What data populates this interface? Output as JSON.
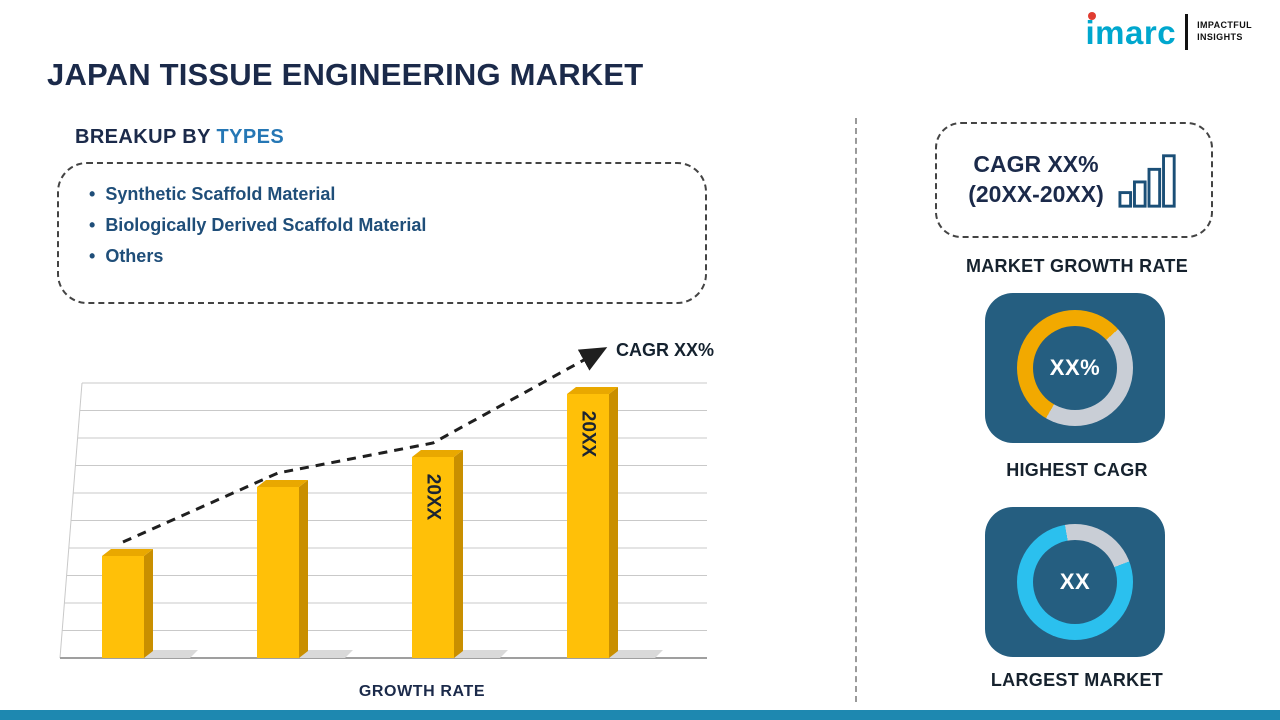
{
  "theme": {
    "navy": "#1b2a4a",
    "heading-accent": "#2577b5",
    "list-blue": "#1f4e79",
    "bar-gold": "#FFC008",
    "bar-gold-side": "#C98F00",
    "bar-gold-top": "#E9A800",
    "tile-blue": "#255e80",
    "donut-yellow": "#F2A900",
    "donut-cyan": "#2BC0EE",
    "donut-gray": "#C9CED6",
    "bottom-bar": "#1E88B0",
    "logo-teal": "#00A7CE",
    "logo-red": "#E03C31"
  },
  "header": {
    "title": "JAPAN TISSUE ENGINEERING MARKET",
    "logo": {
      "brand": "imarc",
      "tagline_top": "IMPACTFUL",
      "tagline_bottom": "INSIGHTS"
    }
  },
  "breakup": {
    "heading_prefix": "BREAKUP BY ",
    "heading_accent": "TYPES",
    "items": [
      "Synthetic Scaffold Material",
      "Biologically Derived Scaffold Material",
      "Others"
    ]
  },
  "chart_data": {
    "type": "bar",
    "categories": [
      "",
      "",
      "20XX",
      "20XX"
    ],
    "values": [
      34,
      57,
      67,
      88
    ],
    "title": "",
    "xlabel": "GROWTH RATE",
    "ylabel": "",
    "ylim": [
      0,
      100
    ],
    "grid": true,
    "legend": false,
    "trend_label": "CAGR XX%",
    "trend_style": "dashed-arrow",
    "bar_style": "3d-gold"
  },
  "sidebar": {
    "growth_card": {
      "line1": "CAGR XX%",
      "line2": "(20XX-20XX)",
      "icon": "bar-chart-icon",
      "caption": "MARKET GROWTH RATE"
    },
    "highest_cagr": {
      "value": "XX%",
      "caption": "HIGHEST CAGR",
      "donut": {
        "from_deg": 210,
        "segments": [
          {
            "color": "donut-yellow",
            "percent": 55
          },
          {
            "color": "donut-gray",
            "percent": 45
          }
        ]
      }
    },
    "largest_market": {
      "value": "XX",
      "caption": "LARGEST MARKET",
      "donut": {
        "from_deg": 350,
        "segments": [
          {
            "color": "donut-gray",
            "percent": 22
          },
          {
            "color": "donut-cyan",
            "percent": 78
          }
        ]
      }
    }
  }
}
